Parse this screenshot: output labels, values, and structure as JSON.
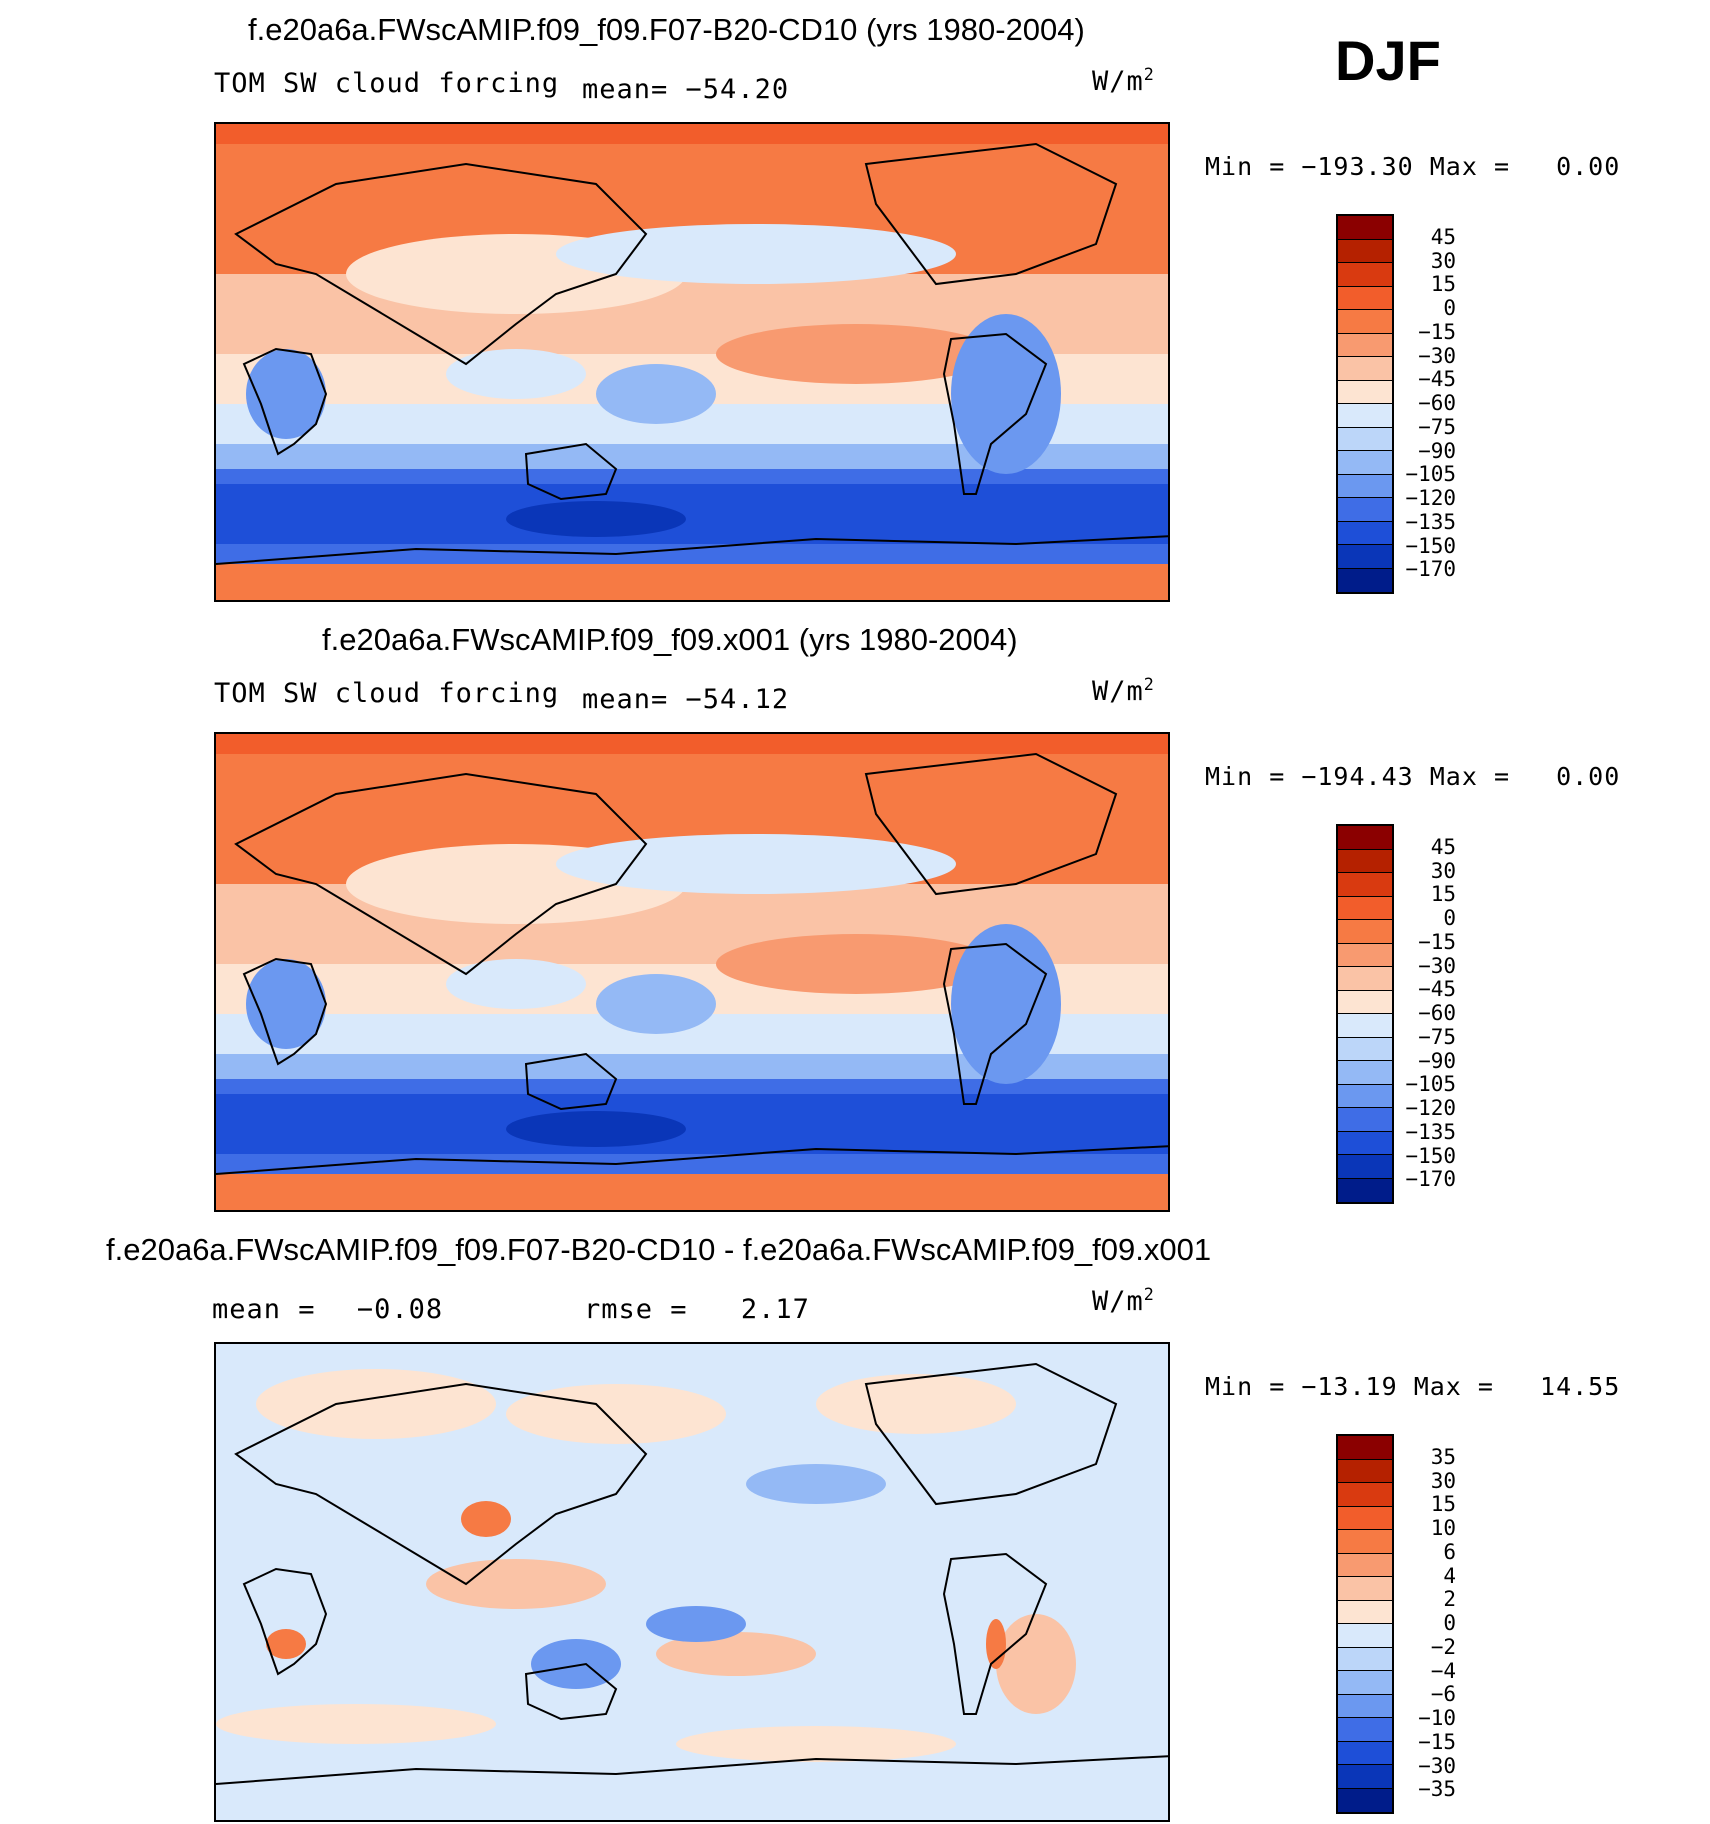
{
  "season": "DJF",
  "units": "W/m",
  "units_exp": "2",
  "colors": {
    "full_scale": [
      "#8b0000",
      "#b52100",
      "#d93a10",
      "#f25d2b",
      "#f67a44",
      "#f89a70",
      "#fac3a6",
      "#fde4d2",
      "#d9e9fb",
      "#bcd6f9",
      "#94b9f5",
      "#6b98f0",
      "#3f6de6",
      "#1e4fd8",
      "#0a36b8",
      "#001c8a"
    ],
    "diff_scale": [
      "#8b0000",
      "#b52100",
      "#d93a10",
      "#f25d2b",
      "#f67a44",
      "#f89a70",
      "#fac3a6",
      "#fde4d2",
      "#d9e9fb",
      "#bcd6f9",
      "#94b9f5",
      "#6b98f0",
      "#3f6de6",
      "#1e4fd8",
      "#0a36b8",
      "#001c8a"
    ]
  },
  "chart_data": [
    {
      "type": "heatmap",
      "title": "f.e20a6a.FWscAMIP.f09_f09.F07-B20-CD10 (yrs 1980-2004)",
      "variable": "TOM SW cloud forcing",
      "mean_label": "mean=",
      "mean": "−54.20",
      "min_label": "Min =",
      "min": "−193.30",
      "max_label": "Max =",
      "max": "0.00",
      "levels": [
        "45",
        "30",
        "15",
        "0",
        "−15",
        "−30",
        "−45",
        "−60",
        "−75",
        "−90",
        "−105",
        "−120",
        "−135",
        "−150",
        "−170"
      ]
    },
    {
      "type": "heatmap",
      "title": "f.e20a6a.FWscAMIP.f09_f09.x001 (yrs 1980-2004)",
      "variable": "TOM SW cloud forcing",
      "mean_label": "mean=",
      "mean": "−54.12",
      "min_label": "Min =",
      "min": "−194.43",
      "max_label": "Max =",
      "max": "0.00",
      "levels": [
        "45",
        "30",
        "15",
        "0",
        "−15",
        "−30",
        "−45",
        "−60",
        "−75",
        "−90",
        "−105",
        "−120",
        "−135",
        "−150",
        "−170"
      ]
    },
    {
      "type": "heatmap",
      "title": "f.e20a6a.FWscAMIP.f09_f09.F07-B20-CD10 - f.e20a6a.FWscAMIP.f09_f09.x001",
      "mean_label": "mean =",
      "mean": "−0.08",
      "rmse_label": "rmse =",
      "rmse": "2.17",
      "min_label": "Min =",
      "min": "−13.19",
      "max_label": "Max =",
      "max": "14.55",
      "levels": [
        "35",
        "30",
        "15",
        "10",
        "6",
        "4",
        "2",
        "0",
        "−2",
        "−4",
        "−6",
        "−10",
        "−15",
        "−30",
        "−35"
      ]
    }
  ]
}
